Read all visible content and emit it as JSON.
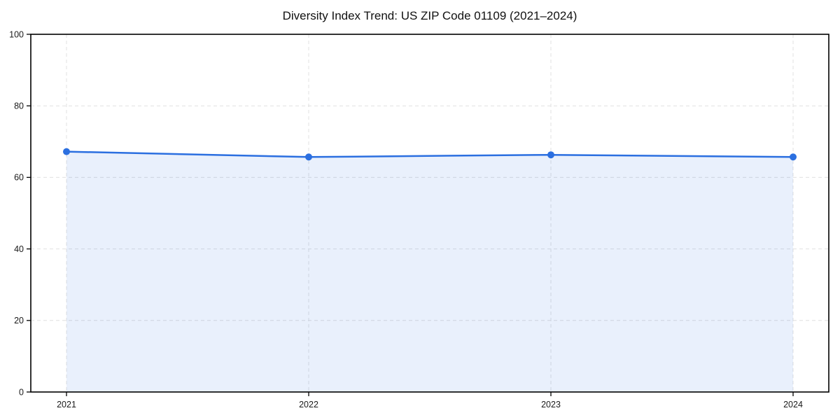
{
  "chart_data": {
    "type": "area",
    "title": "Diversity Index Trend: US ZIP Code 01109 (2021–2024)",
    "x": [
      2021,
      2022,
      2023,
      2024
    ],
    "series": [
      {
        "name": "Diversity Index",
        "values": [
          67.2,
          65.7,
          66.3,
          65.7
        ]
      }
    ],
    "xlabel": "",
    "ylabel": "",
    "ylim": [
      0,
      100
    ],
    "yticks": [
      0,
      20,
      40,
      60,
      80,
      100
    ],
    "grid": true,
    "grid_style": "dashed",
    "legend": "none",
    "colors": {
      "line": "#2B6FE0",
      "marker": "#2B6FE0",
      "area_fill": "rgba(43,111,224,0.10)",
      "grid": "#E0E0E0",
      "axis": "#000000",
      "tick_label": "#1A1A1A",
      "background": "#FFFFFF"
    }
  }
}
